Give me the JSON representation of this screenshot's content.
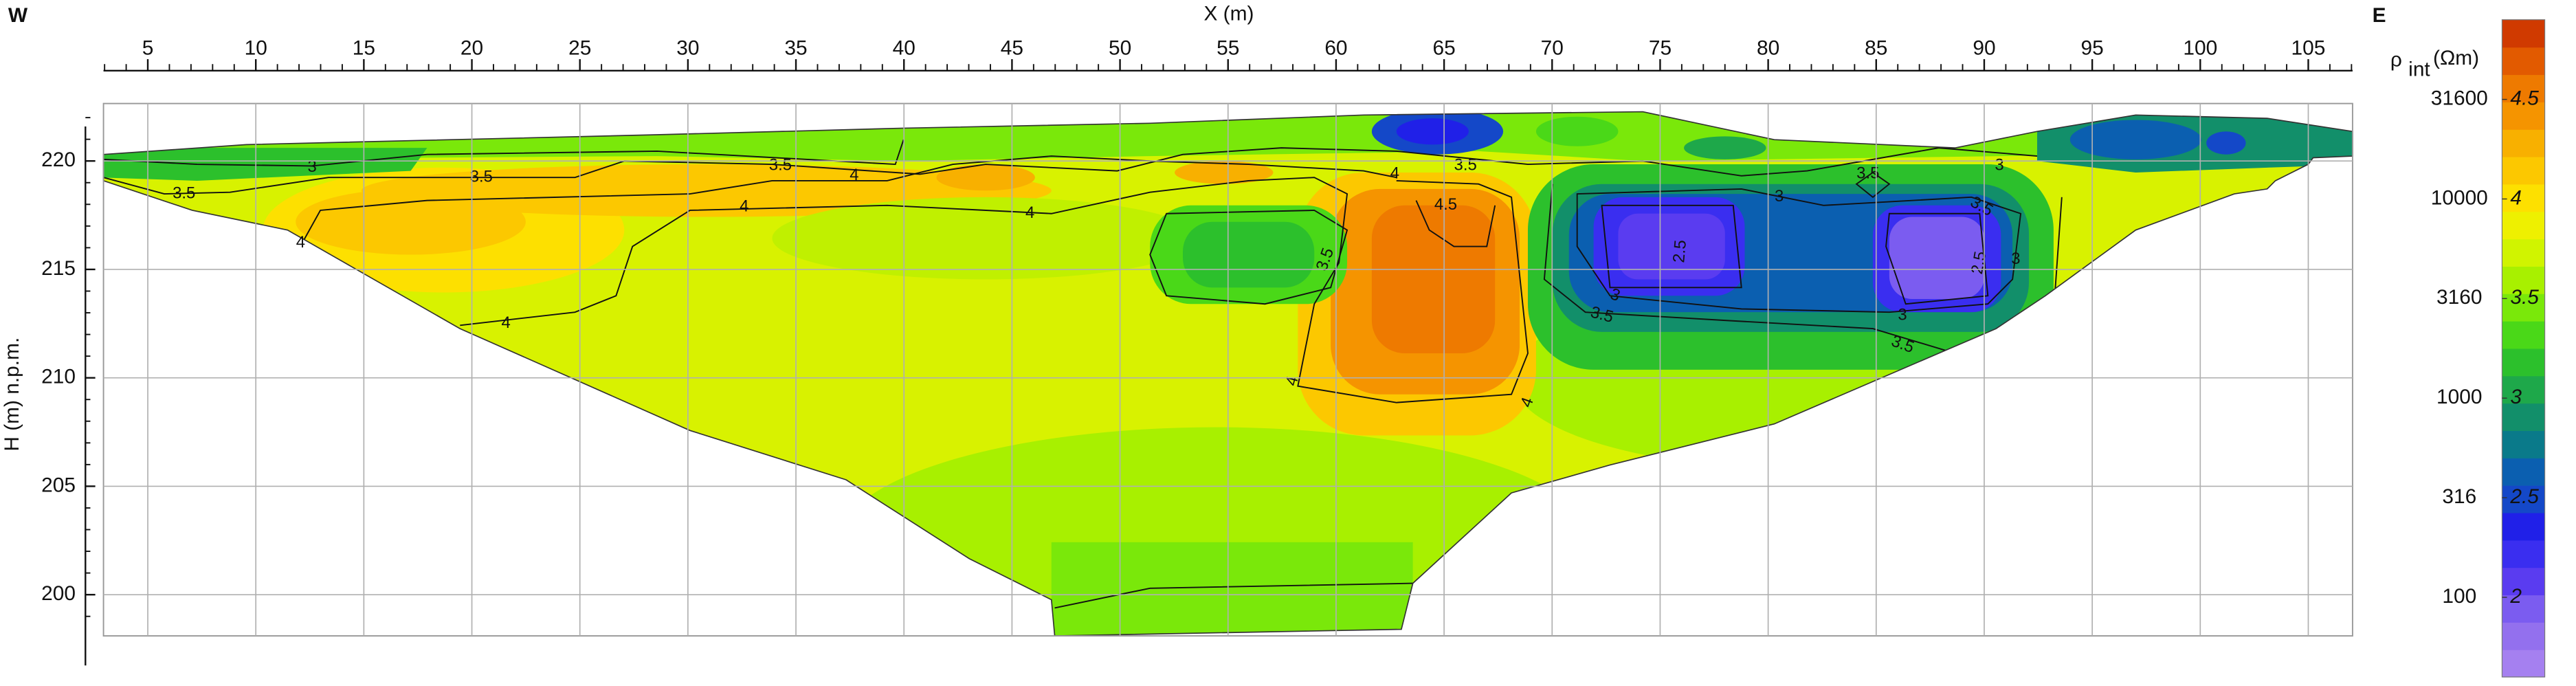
{
  "chart_data": {
    "type": "contour",
    "left_label": "W",
    "right_label": "E",
    "x_label": "X (m)",
    "y_label": "H (m) n.p.m.",
    "xlim": [
      2.95,
      107.05
    ],
    "xticks": [
      5,
      10,
      15,
      20,
      25,
      30,
      35,
      40,
      45,
      50,
      55,
      60,
      65,
      70,
      75,
      80,
      85,
      90,
      95,
      100,
      105
    ],
    "xminorticks": [
      3,
      4,
      6,
      7,
      8,
      9,
      11,
      12,
      13,
      14,
      16,
      17,
      18,
      19,
      21,
      22,
      23,
      24,
      26,
      27,
      28,
      29,
      31,
      32,
      33,
      34,
      36,
      37,
      38,
      39,
      41,
      42,
      43,
      44,
      46,
      47,
      48,
      49,
      51,
      52,
      53,
      54,
      56,
      57,
      58,
      59,
      61,
      62,
      63,
      64,
      66,
      67,
      68,
      69,
      71,
      72,
      73,
      74,
      76,
      77,
      78,
      79,
      81,
      82,
      83,
      84,
      86,
      87,
      88,
      89,
      91,
      92,
      93,
      94,
      96,
      97,
      98,
      99,
      101,
      102,
      103,
      104,
      106,
      107
    ],
    "ylim": [
      198.1,
      222.65
    ],
    "yticks": [
      200,
      205,
      210,
      215,
      220
    ],
    "yminorticks": [
      199,
      201,
      202,
      203,
      204,
      206,
      207,
      208,
      209,
      211,
      212,
      213,
      214,
      216,
      217,
      218,
      219,
      221,
      222
    ],
    "grid": true,
    "colorbar": {
      "symbol": "ρ",
      "subscript": "int",
      "unit": "(Ωm)",
      "lim": [
        1.6,
        4.9
      ],
      "ticks": [
        2,
        2.5,
        3,
        3.5,
        4,
        4.5
      ],
      "resistivity_ticks": [
        {
          "value": 2,
          "label": "100"
        },
        {
          "value": 2.5,
          "label": "316"
        },
        {
          "value": 3,
          "label": "1000"
        },
        {
          "value": 3.5,
          "label": "3160"
        },
        {
          "value": 4,
          "label": "10000"
        },
        {
          "value": 4.5,
          "label": "31600"
        }
      ],
      "colors": [
        "#a580f0",
        "#9370ee",
        "#7b5cf0",
        "#5a3cf0",
        "#3a2ef0",
        "#2020e8",
        "#1448c8",
        "#0b5fb0",
        "#0a7a8a",
        "#128f6a",
        "#1ea84a",
        "#2cc02c",
        "#4ad818",
        "#7ae80a",
        "#a8f000",
        "#d0f400",
        "#eef000",
        "#fde000",
        "#fcc800",
        "#f8b000",
        "#f59400",
        "#ee7a00",
        "#e25a00",
        "#d03a00"
      ]
    },
    "contour_labels": [
      "3",
      "3.5",
      "3.5",
      "4",
      "4",
      "3.5",
      "4",
      "4",
      "4",
      "4",
      "3.5",
      "4.5",
      "3.5",
      "4",
      "4",
      "2.5",
      "3",
      "3.5",
      "3",
      "3.5",
      "3",
      "3.5",
      "3",
      "3.5",
      "2.5",
      "3"
    ]
  }
}
